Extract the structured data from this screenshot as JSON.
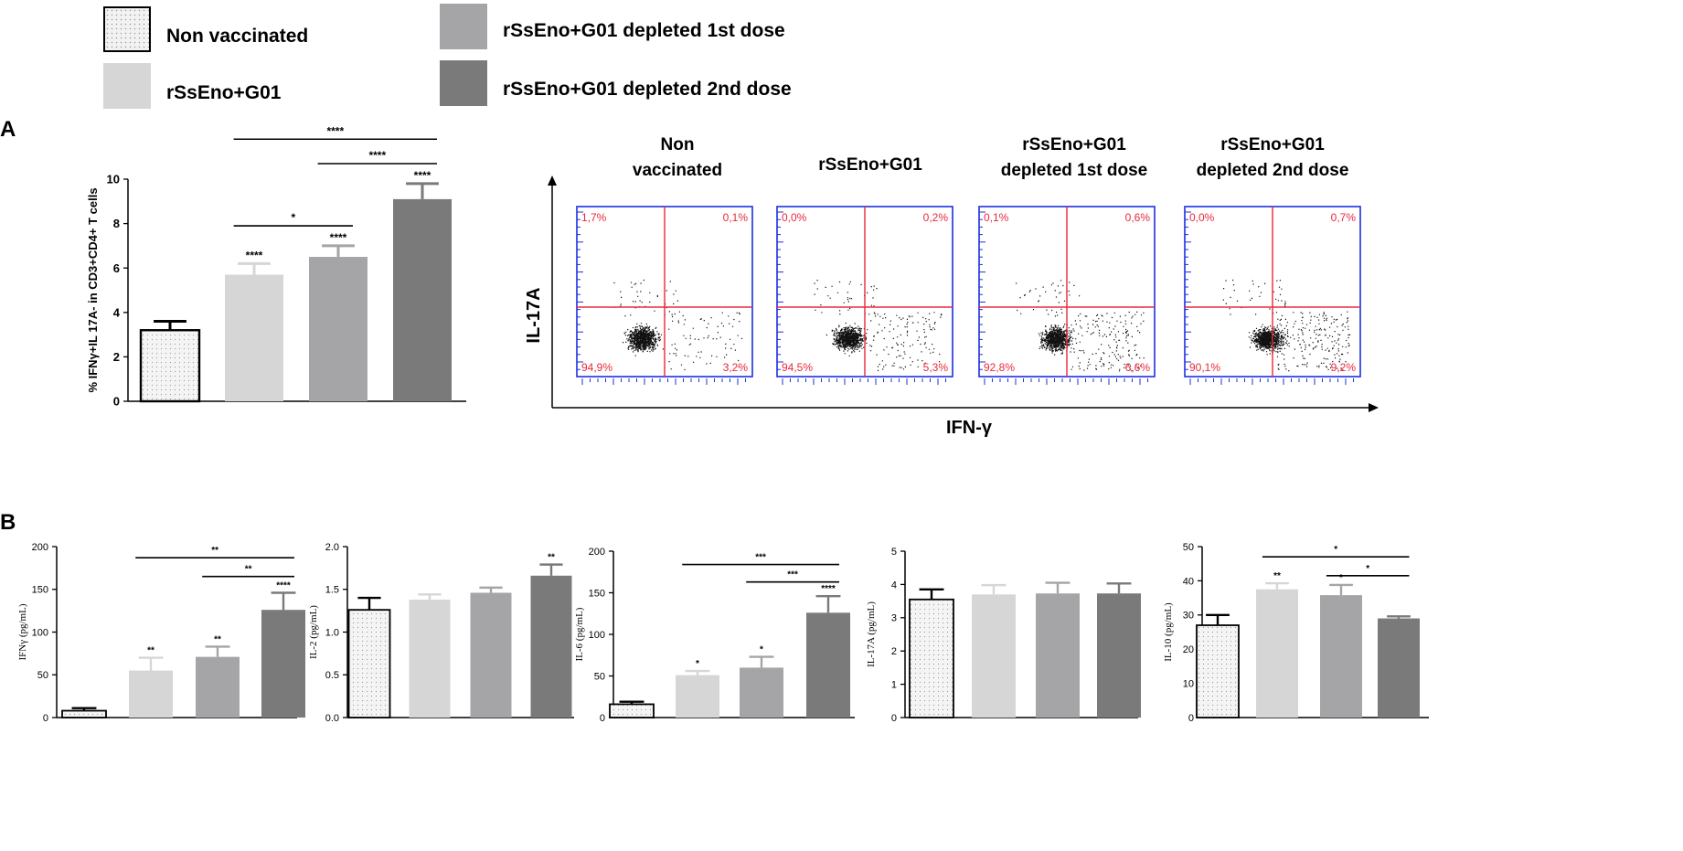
{
  "legend": {
    "items": [
      {
        "label": "Non vaccinated",
        "color": "#f2f2f2",
        "pattern": "dots"
      },
      {
        "label": "rSsEno+G01",
        "color": "#d6d6d6",
        "pattern": "none"
      },
      {
        "label": "rSsEno+G01 depleted 1st dose",
        "color": "#a5a5a8",
        "pattern": "none"
      },
      {
        "label": "rSsEno+G01 depleted 2nd dose",
        "color": "#7a7a7a",
        "pattern": "none"
      }
    ]
  },
  "panel_labels": {
    "a": "A",
    "b": "B"
  },
  "flow": {
    "x_axis_label": "IFN-γ",
    "y_axis_label": "IL-17A",
    "line_color": "#e8293c",
    "frame_color": "#1e2fe0",
    "text_color": "#e8293c",
    "plots": [
      {
        "title_lines": [
          "Non",
          "vaccinated"
        ],
        "ul": "1,7%",
        "ur": "0,1%",
        "ll": "94,9%",
        "lr": "3,2%"
      },
      {
        "title_lines": [
          "rSsEno+G01"
        ],
        "ul": "0,0%",
        "ur": "0,2%",
        "ll": "94,5%",
        "lr": "5,3%"
      },
      {
        "title_lines": [
          "rSsEno+G01",
          "depleted 1st dose"
        ],
        "ul": "0,1%",
        "ur": "0,6%",
        "ll": "92,8%",
        "lr": "6,6%"
      },
      {
        "title_lines": [
          "rSsEno+G01",
          "depleted 2nd dose"
        ],
        "ul": "0,0%",
        "ur": "0,7%",
        "ll": "90,1%",
        "lr": "9,2%"
      }
    ]
  },
  "chart_data": [
    {
      "id": "A",
      "type": "bar",
      "title": "",
      "ylabel": "% IFNγ+IL 17A- in CD3+CD4+ T cells",
      "xlabel": "",
      "categories": [
        "Non vaccinated",
        "rSsEno+G01",
        "rSsEno+G01 depleted 1st dose",
        "rSsEno+G01 depleted 2nd dose"
      ],
      "values": [
        3.2,
        5.7,
        6.5,
        9.1
      ],
      "errors": [
        0.4,
        0.5,
        0.5,
        0.7
      ],
      "bar_labels": [
        "",
        "****",
        "****",
        "****"
      ],
      "ylim": [
        0,
        10
      ],
      "yticks": [
        0,
        2,
        4,
        6,
        8,
        10
      ],
      "ytick_labels": [
        "0",
        "2",
        "4",
        "6",
        "8",
        "10"
      ],
      "brackets": [
        {
          "from": 1,
          "to": 2,
          "label": "*",
          "y": 7.9
        },
        {
          "from": 2,
          "to": 3,
          "label": "****",
          "y": 10.7
        },
        {
          "from": 1,
          "to": 3,
          "label": "****",
          "y": 11.8
        }
      ]
    },
    {
      "id": "B1",
      "type": "bar",
      "ylabel": "IFNγ (pg/mL)",
      "categories": [
        "Non vaccinated",
        "rSsEno+G01",
        "rSsEno+G01 depleted 1st dose",
        "rSsEno+G01 depleted 2nd dose"
      ],
      "values": [
        8,
        55,
        71,
        126
      ],
      "errors": [
        3,
        15,
        12,
        20
      ],
      "bar_labels": [
        "",
        "**",
        "**",
        "****"
      ],
      "ylim": [
        0,
        200
      ],
      "yticks": [
        0,
        50,
        100,
        150,
        200
      ],
      "ytick_labels": [
        "0",
        "50",
        "100",
        "150",
        "200"
      ],
      "brackets": [
        {
          "from": 1,
          "to": 3,
          "label": "**",
          "y": 187
        },
        {
          "from": 2,
          "to": 3,
          "label": "**",
          "y": 165
        }
      ]
    },
    {
      "id": "B2",
      "type": "bar",
      "ylabel": "IL-2 (pg/mL)",
      "categories": [
        "Non vaccinated",
        "rSsEno+G01",
        "rSsEno+G01 depleted 1st dose",
        "rSsEno+G01 depleted 2nd dose"
      ],
      "values": [
        1.26,
        1.38,
        1.46,
        1.66
      ],
      "errors": [
        0.14,
        0.06,
        0.06,
        0.13
      ],
      "bar_labels": [
        "",
        "",
        "",
        "**"
      ],
      "ylim": [
        0,
        2.0
      ],
      "yticks": [
        0,
        0.5,
        1.0,
        1.5,
        2.0
      ],
      "ytick_labels": [
        "0.0",
        "0.5",
        "1.0",
        "1.5",
        "2.0"
      ],
      "brackets": []
    },
    {
      "id": "B3",
      "type": "bar",
      "ylabel": "IL-6 (pg/mL)",
      "categories": [
        "Non vaccinated",
        "rSsEno+G01",
        "rSsEno+G01 depleted 1st dose",
        "rSsEno+G01 depleted 2nd dose"
      ],
      "values": [
        16,
        51,
        60,
        126
      ],
      "errors": [
        3,
        5,
        13,
        20
      ],
      "bar_labels": [
        "",
        "*",
        "*",
        "****"
      ],
      "ylim": [
        0,
        200
      ],
      "yticks": [
        0,
        50,
        100,
        150,
        200
      ],
      "ytick_labels": [
        "0",
        "50",
        "100",
        "150",
        "200"
      ],
      "brackets": [
        {
          "from": 1,
          "to": 3,
          "label": "***",
          "y": 184
        },
        {
          "from": 2,
          "to": 3,
          "label": "***",
          "y": 163
        }
      ]
    },
    {
      "id": "B4",
      "type": "bar",
      "ylabel": "IL-17A (pg/mL)",
      "categories": [
        "Non vaccinated",
        "rSsEno+G01",
        "rSsEno+G01 depleted 1st dose",
        "rSsEno+G01 depleted 2nd dose"
      ],
      "values": [
        3.55,
        3.7,
        3.73,
        3.73
      ],
      "errors": [
        0.3,
        0.28,
        0.32,
        0.3
      ],
      "bar_labels": [
        "",
        "",
        "",
        ""
      ],
      "ylim": [
        0,
        5
      ],
      "yticks": [
        0,
        1,
        2,
        3,
        4,
        5
      ],
      "ytick_labels": [
        "0",
        "1",
        "2",
        "3",
        "4",
        "5"
      ],
      "brackets": []
    },
    {
      "id": "B5",
      "type": "bar",
      "ylabel": "IL-10 (pg/mL)",
      "categories": [
        "Non vaccinated",
        "rSsEno+G01",
        "rSsEno+G01 depleted 1st dose",
        "rSsEno+G01 depleted 2nd dose"
      ],
      "values": [
        27,
        37.5,
        35.8,
        29
      ],
      "errors": [
        3,
        1.8,
        3,
        0.6
      ],
      "bar_labels": [
        "",
        "**",
        "*",
        ""
      ],
      "ylim": [
        0,
        50
      ],
      "yticks": [
        0,
        10,
        20,
        30,
        40,
        50
      ],
      "ytick_labels": [
        "0",
        "10",
        "20",
        "30",
        "40",
        "50"
      ],
      "brackets": [
        {
          "from": 1,
          "to": 3,
          "label": "*",
          "y": 47
        },
        {
          "from": 2,
          "to": 3,
          "label": "*",
          "y": 41.5
        }
      ]
    }
  ]
}
